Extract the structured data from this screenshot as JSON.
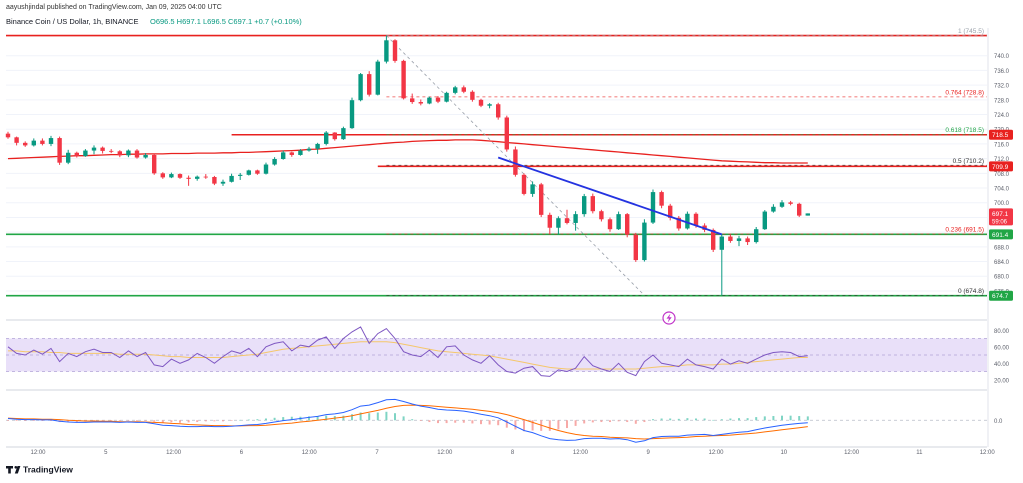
{
  "header": {
    "author_line": "aayushjindal published on TradingView.com, Jan 09, 2025 04:00 UTC",
    "symbol_line": "Binance Coin / US Dollar, 1h, BINANCE",
    "ohlc_line": "O696.5  H697.1  L696.5  C697.1  +0.7 (+0.10%)"
  },
  "footer": {
    "brand": "TradingView"
  },
  "colors": {
    "up": "#089981",
    "down": "#f23645",
    "ma": "#e8211f",
    "resistance": "#e8211f",
    "support": "#21a646",
    "trendline": "#2433e0",
    "fib_text": "#e8211f",
    "fib_618_text": "#21a646",
    "rsi": "#7e57c2",
    "rsi_band": "#e9e0f9",
    "macd": "#2962ff",
    "signal": "#ff6d00",
    "ref_line": "#9aa0aa"
  },
  "icons": {
    "alert": "lightning-icon"
  },
  "chart_data": {
    "type": "candlestick",
    "symbol": "Binance Coin / US Dollar",
    "interval": "1h",
    "exchange": "BINANCE",
    "ohlc_last": {
      "open": 696.5,
      "high": 697.1,
      "low": 696.5,
      "close": 697.1,
      "change": 0.7,
      "change_pct": 0.1
    },
    "ylim": [
      670,
      747
    ],
    "y_ticks": [
      676,
      680,
      684,
      688,
      692,
      696,
      700,
      704,
      708,
      712,
      716,
      720,
      724,
      728,
      732,
      736,
      740
    ],
    "x_ticks": [
      "12:00",
      "5",
      "12:00",
      "6",
      "12:00",
      "7",
      "12:00",
      "8",
      "12:00",
      "9",
      "12:00",
      "10",
      "12:00",
      "11",
      "12:00"
    ],
    "price_tags": [
      {
        "label": "718.5",
        "value": 718.5,
        "color": "#e8211f"
      },
      {
        "label": "709.9",
        "value": 709.9,
        "color": "#e8211f"
      },
      {
        "label": "697.1",
        "sub": "59:06",
        "value": 697.1,
        "color": "#f23645"
      },
      {
        "label": "691.4",
        "value": 691.4,
        "color": "#21a646"
      },
      {
        "label": "674.7",
        "value": 674.7,
        "color": "#21a646"
      }
    ],
    "hlines": [
      {
        "value": 745.5,
        "color": "#e8211f",
        "style": "solid"
      },
      {
        "value": 718.5,
        "color": "#e8211f",
        "style": "solid",
        "from_t": 26
      },
      {
        "value": 709.9,
        "color": "#e8211f",
        "style": "solid",
        "from_t": 43
      },
      {
        "value": 691.4,
        "color": "#21a646",
        "style": "solid"
      },
      {
        "value": 674.7,
        "color": "#21a646",
        "style": "solid"
      }
    ],
    "fib_levels": [
      {
        "label": "1 (745.5)",
        "value": 745.5,
        "color": "#9aa0aa"
      },
      {
        "label": "0.764 (728.8)",
        "value": 728.8,
        "color": "#e8211f"
      },
      {
        "label": "0.618 (718.5)",
        "value": 718.5,
        "color": "#21a646"
      },
      {
        "label": "0.5 (710.2)",
        "value": 710.2,
        "color": "#333333"
      },
      {
        "label": "0.236 (691.5)",
        "value": 691.5,
        "color": "#e8211f"
      },
      {
        "label": "0 (674.8)",
        "value": 674.8,
        "color": "#333333"
      }
    ],
    "trendline": {
      "from": {
        "t": 57,
        "value": 712.3
      },
      "to": {
        "t": 83,
        "value": 691.4
      }
    },
    "fib_diagonal": {
      "from": {
        "t": 44,
        "value": 745.5
      },
      "to": {
        "t": 74,
        "value": 674.8
      }
    },
    "candles": [
      [
        718.8,
        719.3,
        717.4,
        717.8
      ],
      [
        717.8,
        718.0,
        715.6,
        716.3
      ],
      [
        716.3,
        716.7,
        715.2,
        715.6
      ],
      [
        715.6,
        717.5,
        715.3,
        716.9
      ],
      [
        716.9,
        717.5,
        715.6,
        716.0
      ],
      [
        716.0,
        718.2,
        715.4,
        717.6
      ],
      [
        717.6,
        718.0,
        710.3,
        710.9
      ],
      [
        710.9,
        714.4,
        710.5,
        713.6
      ],
      [
        713.6,
        713.9,
        712.3,
        712.7
      ],
      [
        712.7,
        714.6,
        712.5,
        714.2
      ],
      [
        714.2,
        715.6,
        713.2,
        715.0
      ],
      [
        715.0,
        715.3,
        713.4,
        714.1
      ],
      [
        714.1,
        714.6,
        713.5,
        714.0
      ],
      [
        714.0,
        714.3,
        712.4,
        712.9
      ],
      [
        712.9,
        714.5,
        712.4,
        714.2
      ],
      [
        714.2,
        714.6,
        712.0,
        712.3
      ],
      [
        712.3,
        713.5,
        712.0,
        713.0
      ],
      [
        713.0,
        713.3,
        707.6,
        708.0
      ],
      [
        708.0,
        708.3,
        706.5,
        706.9
      ],
      [
        706.9,
        708.2,
        706.7,
        707.8
      ],
      [
        707.8,
        708.0,
        706.5,
        706.8
      ],
      [
        706.8,
        707.4,
        704.6,
        706.5
      ],
      [
        706.5,
        707.4,
        706.0,
        707.1
      ],
      [
        707.1,
        707.8,
        706.5,
        707.0
      ],
      [
        707.0,
        707.3,
        704.8,
        705.2
      ],
      [
        705.2,
        706.3,
        704.6,
        705.7
      ],
      [
        705.7,
        707.9,
        705.5,
        707.3
      ],
      [
        707.3,
        708.1,
        706.2,
        707.6
      ],
      [
        707.6,
        709.0,
        707.4,
        708.8
      ],
      [
        708.8,
        709.0,
        707.6,
        707.9
      ],
      [
        707.9,
        710.9,
        707.7,
        710.4
      ],
      [
        710.4,
        712.4,
        710.1,
        711.9
      ],
      [
        711.9,
        714.2,
        711.7,
        713.7
      ],
      [
        713.7,
        713.9,
        712.5,
        713.0
      ],
      [
        713.0,
        714.6,
        712.8,
        714.2
      ],
      [
        714.2,
        715.2,
        713.9,
        714.7
      ],
      [
        714.7,
        716.3,
        713.3,
        716.0
      ],
      [
        716.0,
        719.5,
        715.6,
        719.1
      ],
      [
        719.1,
        719.2,
        716.9,
        717.3
      ],
      [
        717.3,
        720.7,
        717.1,
        720.3
      ],
      [
        720.3,
        728.6,
        720.1,
        727.9
      ],
      [
        727.9,
        735.3,
        727.6,
        735.0
      ],
      [
        735.0,
        735.8,
        728.9,
        729.4
      ],
      [
        729.4,
        738.9,
        729.2,
        738.4
      ],
      [
        738.4,
        745.5,
        737.9,
        744.2
      ],
      [
        744.2,
        744.5,
        738.1,
        738.6
      ],
      [
        738.6,
        738.9,
        728.1,
        728.4
      ],
      [
        728.4,
        729.7,
        726.9,
        727.4
      ],
      [
        727.4,
        728.1,
        726.5,
        727.0
      ],
      [
        727.0,
        728.9,
        726.8,
        728.6
      ],
      [
        728.6,
        729.0,
        727.1,
        727.5
      ],
      [
        727.5,
        730.2,
        727.3,
        729.9
      ],
      [
        729.9,
        731.8,
        729.5,
        731.4
      ],
      [
        731.4,
        731.9,
        729.8,
        730.2
      ],
      [
        730.2,
        730.6,
        727.5,
        728.0
      ],
      [
        728.0,
        728.3,
        726.0,
        726.4
      ],
      [
        726.4,
        727.1,
        725.7,
        726.8
      ],
      [
        726.8,
        727.2,
        722.6,
        723.2
      ],
      [
        723.2,
        723.7,
        713.9,
        714.5
      ],
      [
        714.5,
        715.3,
        707.1,
        707.6
      ],
      [
        707.6,
        708.0,
        702.0,
        702.4
      ],
      [
        702.4,
        705.8,
        701.6,
        705.0
      ],
      [
        705.0,
        705.4,
        696.1,
        696.7
      ],
      [
        696.7,
        697.3,
        691.5,
        693.2
      ],
      [
        693.2,
        696.3,
        691.4,
        695.8
      ],
      [
        695.8,
        698.1,
        694.1,
        694.5
      ],
      [
        694.5,
        697.7,
        692.4,
        696.9
      ],
      [
        696.9,
        702.4,
        696.2,
        701.8
      ],
      [
        701.8,
        702.5,
        697.1,
        697.7
      ],
      [
        697.7,
        698.1,
        694.9,
        695.5
      ],
      [
        695.5,
        696.0,
        692.1,
        692.8
      ],
      [
        692.8,
        697.6,
        692.6,
        696.9
      ],
      [
        696.9,
        697.2,
        690.6,
        691.3
      ],
      [
        691.3,
        691.8,
        683.9,
        684.4
      ],
      [
        684.4,
        695.5,
        684.0,
        694.6
      ],
      [
        694.6,
        703.6,
        694.2,
        702.9
      ],
      [
        702.9,
        703.3,
        698.5,
        699.2
      ],
      [
        699.2,
        699.7,
        695.2,
        695.9
      ],
      [
        695.9,
        696.4,
        692.4,
        693.0
      ],
      [
        693.0,
        697.6,
        692.7,
        697.0
      ],
      [
        697.0,
        697.4,
        693.2,
        693.8
      ],
      [
        693.8,
        694.4,
        692.0,
        692.6
      ],
      [
        692.6,
        693.0,
        686.6,
        687.2
      ],
      [
        687.2,
        691.5,
        674.8,
        690.8
      ],
      [
        690.8,
        691.3,
        689.1,
        689.6
      ],
      [
        689.6,
        691.0,
        688.2,
        690.3
      ],
      [
        690.3,
        690.8,
        688.5,
        689.3
      ],
      [
        689.3,
        693.4,
        688.9,
        692.8
      ],
      [
        692.8,
        698.0,
        692.6,
        697.6
      ],
      [
        697.6,
        699.6,
        697.3,
        698.9
      ],
      [
        698.9,
        700.7,
        698.6,
        700.1
      ],
      [
        700.1,
        700.5,
        699.3,
        699.7
      ],
      [
        699.7,
        700.0,
        696.1,
        696.5
      ],
      [
        696.5,
        697.1,
        696.5,
        697.1
      ]
    ],
    "ma": [
      712.0,
      712.1,
      712.2,
      712.3,
      712.4,
      712.5,
      712.6,
      712.7,
      712.8,
      712.8,
      712.9,
      713.0,
      713.1,
      713.1,
      713.2,
      713.2,
      713.3,
      713.3,
      713.3,
      713.4,
      713.4,
      713.4,
      713.5,
      713.5,
      713.5,
      713.6,
      713.6,
      713.7,
      713.7,
      713.8,
      713.9,
      714.0,
      714.1,
      714.2,
      714.3,
      714.5,
      714.6,
      714.8,
      715.0,
      715.2,
      715.4,
      715.6,
      715.8,
      716.0,
      716.2,
      716.4,
      716.5,
      716.7,
      716.8,
      716.9,
      717.0,
      717.0,
      717.1,
      717.1,
      717.1,
      717.0,
      716.8,
      716.6,
      716.4,
      716.2,
      716.0,
      715.8,
      715.6,
      715.4,
      715.2,
      715.0,
      714.8,
      714.6,
      714.4,
      714.2,
      714.0,
      713.8,
      713.6,
      713.4,
      713.2,
      713.0,
      712.8,
      712.6,
      712.4,
      712.2,
      712.0,
      711.8,
      711.6,
      711.4,
      711.3,
      711.2,
      711.1,
      711.0,
      710.9,
      710.9,
      710.8,
      710.8,
      710.8,
      710.8
    ],
    "rsi": {
      "ticks": [
        20,
        40,
        60,
        80
      ],
      "band": [
        30,
        70
      ],
      "ylim": [
        10,
        90
      ],
      "values": [
        60,
        52,
        50,
        56,
        51,
        58,
        42,
        52,
        48,
        54,
        57,
        53,
        53,
        47,
        55,
        48,
        53,
        38,
        36,
        45,
        40,
        44,
        52,
        47,
        40,
        48,
        55,
        52,
        58,
        48,
        60,
        64,
        66,
        55,
        62,
        60,
        68,
        72,
        58,
        70,
        78,
        84,
        64,
        76,
        82,
        70,
        54,
        50,
        48,
        56,
        47,
        60,
        61,
        50,
        44,
        40,
        49,
        38,
        30,
        28,
        34,
        36,
        25,
        24,
        32,
        30,
        34,
        48,
        37,
        33,
        30,
        40,
        29,
        25,
        42,
        50,
        40,
        38,
        36,
        45,
        38,
        36,
        33,
        45,
        39,
        43,
        40,
        45,
        50,
        53,
        54,
        53,
        48,
        49
      ],
      "ma": [
        55,
        55,
        54,
        54,
        54,
        53,
        53,
        52,
        52,
        52,
        52,
        52,
        52,
        51,
        51,
        51,
        51,
        50,
        49,
        48,
        48,
        47,
        47,
        47,
        47,
        47,
        48,
        49,
        50,
        51,
        53,
        55,
        57,
        58,
        59,
        60,
        61,
        62,
        63,
        64,
        65,
        66,
        66,
        66,
        66,
        65,
        63,
        61,
        59,
        57,
        55,
        54,
        53,
        52,
        51,
        50,
        49,
        47,
        45,
        43,
        41,
        39,
        37,
        35,
        34,
        33,
        33,
        33,
        33,
        33,
        33,
        33,
        33,
        33,
        34,
        35,
        36,
        36,
        37,
        38,
        38,
        38,
        38,
        39,
        39,
        40,
        41,
        42,
        43,
        44,
        45,
        46,
        47,
        47
      ]
    },
    "macd": {
      "ticks": [
        0.0
      ],
      "label": "0.0",
      "ylim": [
        -7,
        8
      ],
      "macd": [
        0.5,
        0.3,
        0.2,
        0.2,
        0.1,
        0.1,
        -0.3,
        -0.5,
        -0.6,
        -0.6,
        -0.5,
        -0.5,
        -0.5,
        -0.6,
        -0.5,
        -0.6,
        -0.6,
        -1.0,
        -1.4,
        -1.5,
        -1.7,
        -1.8,
        -1.8,
        -1.7,
        -1.8,
        -1.8,
        -1.7,
        -1.5,
        -1.3,
        -1.2,
        -0.9,
        -0.5,
        -0.1,
        0.2,
        0.5,
        0.8,
        1.1,
        1.6,
        1.8,
        2.2,
        3.0,
        4.0,
        4.3,
        5.0,
        5.8,
        5.9,
        5.3,
        4.6,
        4.0,
        3.6,
        3.1,
        2.9,
        2.8,
        2.6,
        2.2,
        1.7,
        1.3,
        0.7,
        -0.5,
        -1.7,
        -2.9,
        -3.5,
        -4.4,
        -5.2,
        -5.5,
        -5.7,
        -5.6,
        -5.2,
        -5.1,
        -5.1,
        -5.3,
        -5.2,
        -5.5,
        -6.2,
        -5.8,
        -4.9,
        -4.6,
        -4.5,
        -4.5,
        -4.2,
        -4.1,
        -4.0,
        -4.3,
        -4.0,
        -3.7,
        -3.4,
        -3.2,
        -2.7,
        -2.2,
        -1.8,
        -1.4,
        -1.1,
        -0.9,
        -0.7
      ],
      "signal": [
        0.6,
        0.5,
        0.4,
        0.4,
        0.3,
        0.3,
        0.2,
        0.0,
        -0.1,
        -0.2,
        -0.2,
        -0.3,
        -0.3,
        -0.4,
        -0.4,
        -0.4,
        -0.5,
        -0.6,
        -0.7,
        -0.9,
        -1.0,
        -1.2,
        -1.3,
        -1.4,
        -1.5,
        -1.5,
        -1.6,
        -1.6,
        -1.5,
        -1.5,
        -1.4,
        -1.2,
        -1.0,
        -0.8,
        -0.5,
        -0.3,
        0.0,
        0.3,
        0.6,
        0.9,
        1.3,
        1.8,
        2.3,
        2.8,
        3.4,
        3.9,
        4.2,
        4.3,
        4.2,
        4.1,
        3.9,
        3.7,
        3.5,
        3.3,
        3.1,
        2.8,
        2.5,
        2.1,
        1.6,
        0.9,
        0.2,
        -0.6,
        -1.4,
        -2.2,
        -2.9,
        -3.5,
        -4.0,
        -4.3,
        -4.5,
        -4.6,
        -4.8,
        -4.9,
        -5.0,
        -5.2,
        -5.3,
        -5.2,
        -5.1,
        -5.0,
        -4.9,
        -4.8,
        -4.6,
        -4.5,
        -4.4,
        -4.3,
        -4.2,
        -4.0,
        -3.8,
        -3.6,
        -3.3,
        -3.0,
        -2.7,
        -2.4,
        -2.1,
        -1.8
      ]
    }
  }
}
